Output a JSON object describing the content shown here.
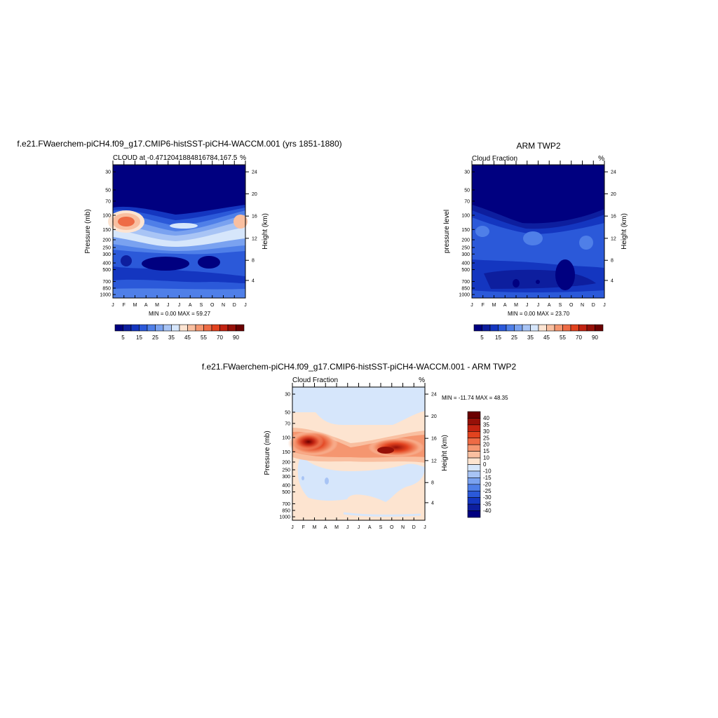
{
  "colorbar_full": [
    "#000080",
    "#0d1e9e",
    "#1436c0",
    "#2b59d9",
    "#4f7fe8",
    "#7aa2f0",
    "#a8c4f5",
    "#d6e6fb",
    "#fce4d2",
    "#f9bfa0",
    "#f59670",
    "#ee6b45",
    "#e2431f",
    "#c22311",
    "#961008",
    "#6b0000"
  ],
  "colorbar_diff": [
    "#6b0000",
    "#961008",
    "#c22311",
    "#e2431f",
    "#ee6b45",
    "#f59670",
    "#f9bfa0",
    "#fde4d0",
    "#d6e6fb",
    "#a8c4f5",
    "#7aa2f0",
    "#4f7fe8",
    "#2b59d9",
    "#1436c0",
    "#0d1e9e",
    "#000080"
  ],
  "panels": [
    {
      "suptitle": "f.e21.FWaerchem-piCH4.f09_g17.CMIP6-histSST-piCH4-WACCM.001 (yrs 1851-1880)",
      "left_title": "CLOUD at -0.4712041884816784,167.5",
      "right_title": "%",
      "ylabel": "Pressure (mb)",
      "ylabel_right": "Height (km)",
      "minmax": "MIN =   0.00 MAX =  59.27",
      "chart_data": {
        "type": "heatmap",
        "x": [
          "J",
          "F",
          "M",
          "A",
          "M",
          "J",
          "J",
          "A",
          "S",
          "O",
          "N",
          "D",
          "J"
        ],
        "y_ticks": [
          "30",
          "50",
          "70",
          "100",
          "150",
          "200",
          "250",
          "300",
          "400",
          "500",
          "700",
          "850",
          "1000"
        ],
        "y2_ticks": [
          "24",
          "20",
          "16",
          "12",
          "8",
          "4"
        ],
        "colorbar_labels": [
          "5",
          "15",
          "25",
          "35",
          "45",
          "55",
          "70",
          "90"
        ],
        "min": 0.0,
        "max": 59.27
      }
    },
    {
      "suptitle": "ARM TWP2",
      "left_title": "Cloud Fraction",
      "right_title": "%",
      "ylabel": "pressure level",
      "ylabel_right": "Height (km)",
      "minmax": "MIN =   0.00 MAX =  23.70",
      "chart_data": {
        "type": "heatmap",
        "x": [
          "J",
          "F",
          "M",
          "A",
          "M",
          "J",
          "J",
          "A",
          "S",
          "O",
          "N",
          "D",
          "J"
        ],
        "y_ticks": [
          "30",
          "50",
          "70",
          "100",
          "150",
          "200",
          "250",
          "300",
          "400",
          "500",
          "700",
          "850",
          "1000"
        ],
        "y2_ticks": [
          "24",
          "20",
          "16",
          "12",
          "8",
          "4"
        ],
        "colorbar_labels": [
          "5",
          "15",
          "25",
          "35",
          "45",
          "55",
          "70",
          "90"
        ],
        "min": 0.0,
        "max": 23.7
      }
    },
    {
      "suptitle": "f.e21.FWaerchem-piCH4.f09_g17.CMIP6-histSST-piCH4-WACCM.001 - ARM TWP2",
      "left_title": "Cloud Fraction",
      "right_title": "%",
      "ylabel": "Pressure (mb)",
      "ylabel_right": "Height (km)",
      "minmax": "MIN = -11.74 MAX =  48.35",
      "chart_data": {
        "type": "heatmap",
        "x": [
          "J",
          "F",
          "M",
          "A",
          "M",
          "J",
          "J",
          "A",
          "S",
          "O",
          "N",
          "D",
          "J"
        ],
        "y_ticks": [
          "30",
          "50",
          "70",
          "100",
          "150",
          "200",
          "250",
          "300",
          "400",
          "500",
          "700",
          "850",
          "1000"
        ],
        "y2_ticks": [
          "24",
          "20",
          "16",
          "12",
          "8",
          "4"
        ],
        "colorbar_labels": [
          "40",
          "35",
          "30",
          "25",
          "20",
          "15",
          "10",
          "0",
          "-10",
          "-15",
          "-20",
          "-25",
          "-30",
          "-35",
          "-40"
        ],
        "min": -11.74,
        "max": 48.35
      }
    }
  ]
}
